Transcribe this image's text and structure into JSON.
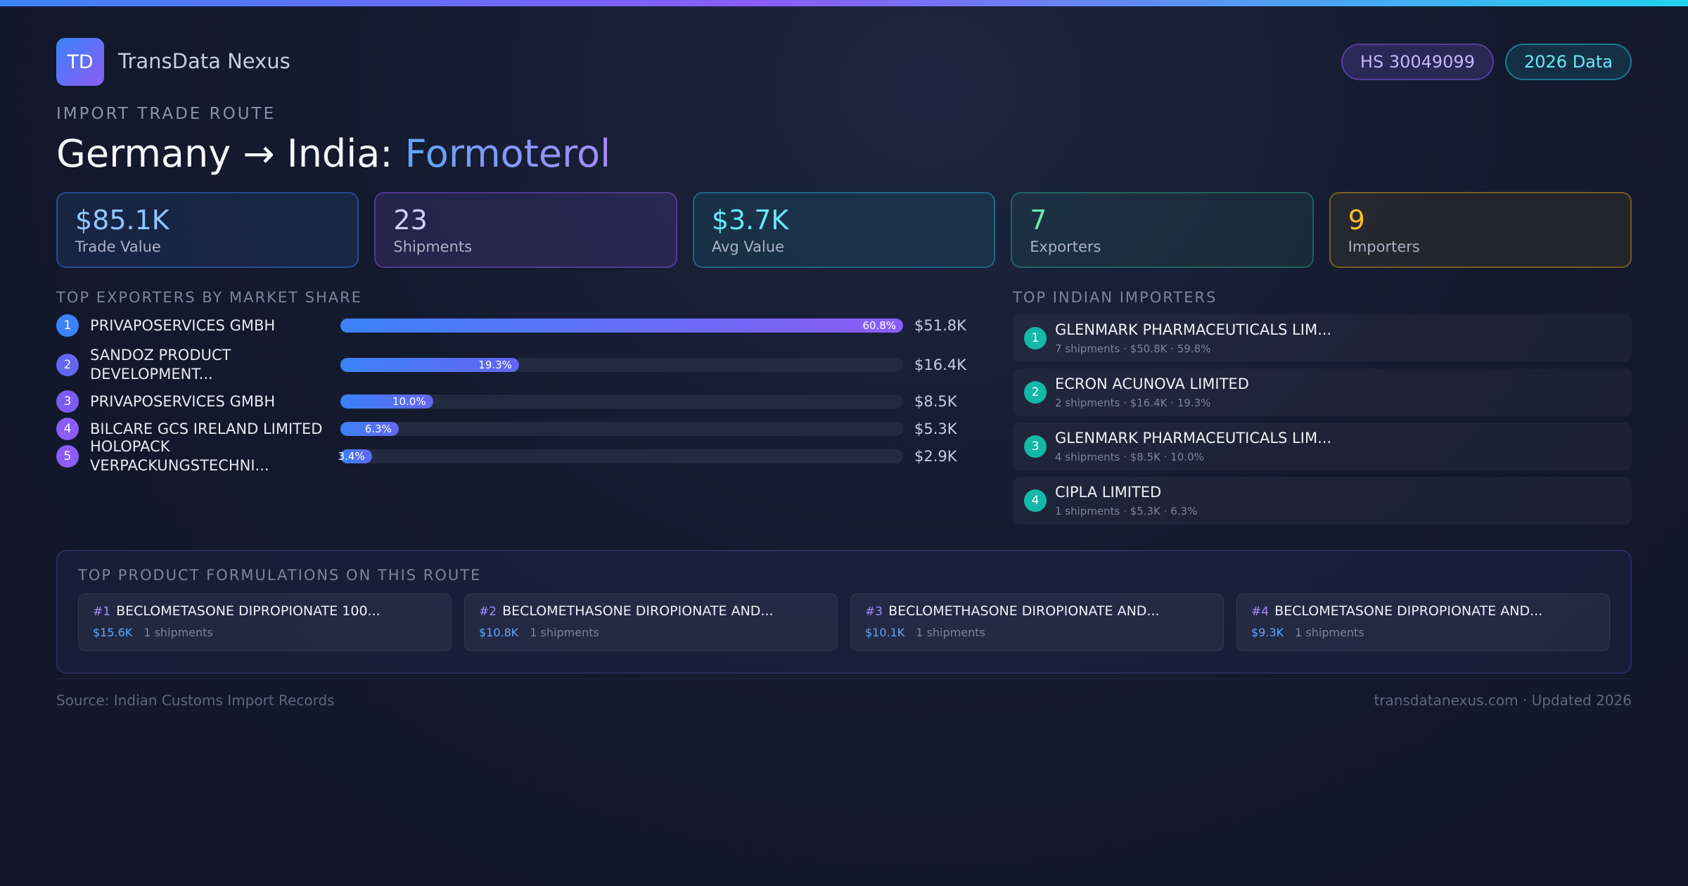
{
  "brand": {
    "logo_text": "TD",
    "name": "TransData Nexus"
  },
  "badges": {
    "hs_code": "HS 30049099",
    "year": "2026 Data"
  },
  "route": {
    "eyebrow": "IMPORT TRADE ROUTE",
    "title_prefix": "Germany → India: ",
    "product": "Formoterol"
  },
  "stats": [
    {
      "value": "$85.1K",
      "label": "Trade Value"
    },
    {
      "value": "23",
      "label": "Shipments"
    },
    {
      "value": "$3.7K",
      "label": "Avg Value"
    },
    {
      "value": "7",
      "label": "Exporters"
    },
    {
      "value": "9",
      "label": "Importers"
    }
  ],
  "exporters": {
    "label": "TOP EXPORTERS BY MARKET SHARE",
    "rows": [
      {
        "rank": "1",
        "name": "PRIVAPOSERVICES GMBH",
        "share_pct": 60.8,
        "share_label": "60.8%",
        "value": "$51.8K",
        "rank_color": "#3b82f6"
      },
      {
        "rank": "2",
        "name": "SANDOZ PRODUCT DEVELOPMENT...",
        "share_pct": 19.3,
        "share_label": "19.3%",
        "value": "$16.4K",
        "rank_color": "#6366f1"
      },
      {
        "rank": "3",
        "name": "PRIVAPOSERVICES GMBH",
        "share_pct": 10.0,
        "share_label": "10.0%",
        "value": "$8.5K",
        "rank_color": "#7c5cf0"
      },
      {
        "rank": "4",
        "name": "BILCARE GCS IRELAND LIMITED",
        "share_pct": 6.3,
        "share_label": "6.3%",
        "value": "$5.3K",
        "rank_color": "#8b5cf6"
      },
      {
        "rank": "5",
        "name": "HOLOPACK VERPACKUNGSTECHNI...",
        "share_pct": 3.4,
        "share_label": "3.4%",
        "value": "$2.9K",
        "rank_color": "#8b5cf6"
      }
    ]
  },
  "importers": {
    "label": "TOP INDIAN IMPORTERS",
    "rows": [
      {
        "rank": "1",
        "name": "GLENMARK PHARMACEUTICALS LIM...",
        "meta": "7 shipments · $50.8K · 59.8%"
      },
      {
        "rank": "2",
        "name": "ECRON ACUNOVA LIMITED",
        "meta": "2 shipments · $16.4K · 19.3%"
      },
      {
        "rank": "3",
        "name": "GLENMARK PHARMACEUTICALS LIM...",
        "meta": "4 shipments · $8.5K · 10.0%"
      },
      {
        "rank": "4",
        "name": "CIPLA LIMITED",
        "meta": "1 shipments · $5.3K · 6.3%"
      }
    ]
  },
  "formulations": {
    "label": "TOP PRODUCT FORMULATIONS ON THIS ROUTE",
    "items": [
      {
        "num": "#1",
        "name": "BECLOMETASONE DIPROPIONATE 100...",
        "value": "$15.6K",
        "shipments": "1 shipments"
      },
      {
        "num": "#2",
        "name": "BECLOMETHASONE DIROPIONATE AND...",
        "value": "$10.8K",
        "shipments": "1 shipments"
      },
      {
        "num": "#3",
        "name": "BECLOMETHASONE DIROPIONATE AND...",
        "value": "$10.1K",
        "shipments": "1 shipments"
      },
      {
        "num": "#4",
        "name": "BECLOMETASONE DIPROPIONATE AND...",
        "value": "$9.3K",
        "shipments": "1 shipments"
      }
    ]
  },
  "footer": {
    "source": "Source: Indian Customs Import Records",
    "site": "transdatanexus.com · Updated 2026"
  }
}
